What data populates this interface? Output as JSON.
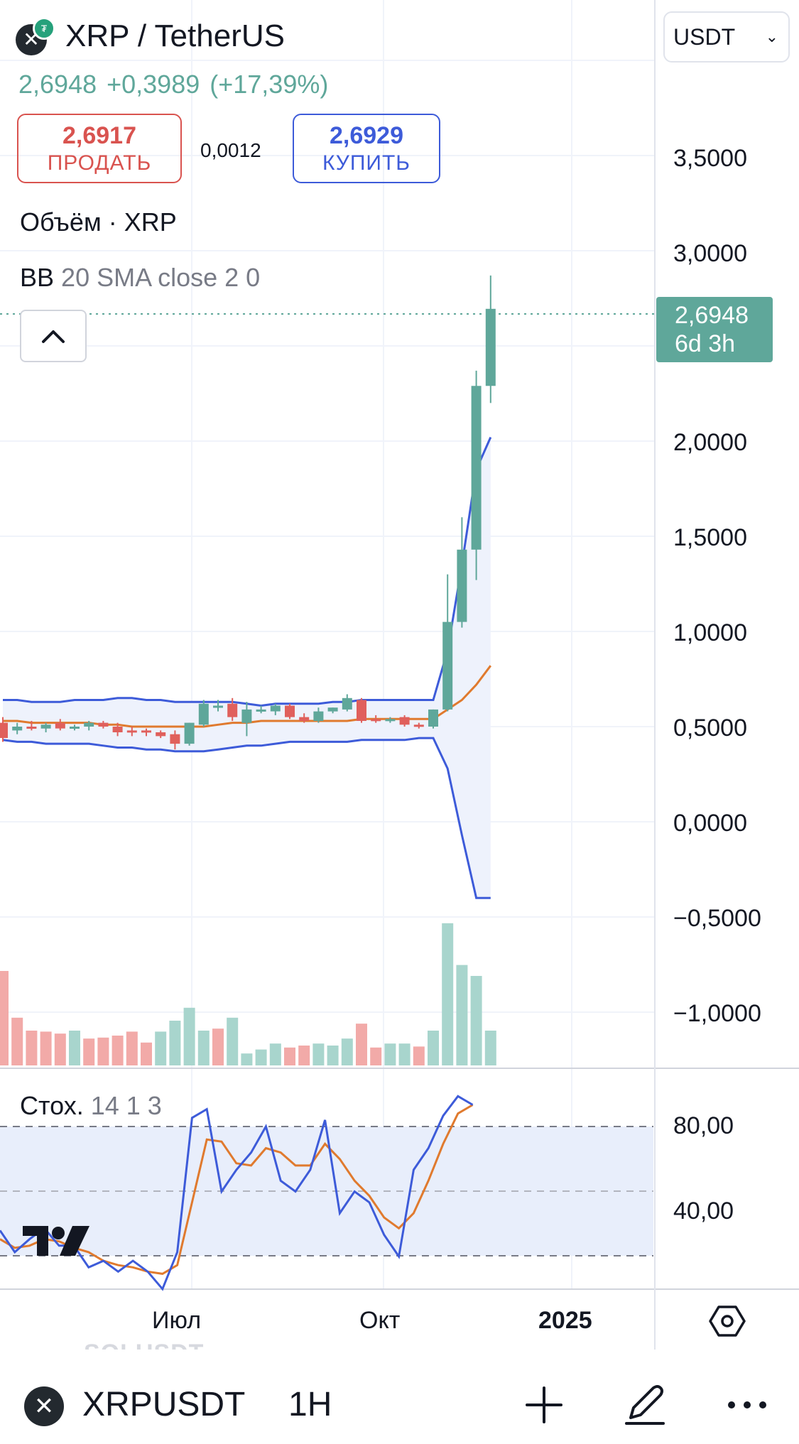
{
  "header": {
    "pair_title": "XRP / TetherUS",
    "last_price": "2,6948",
    "change_abs": "+0,3989",
    "change_pct": "(+17,39%)",
    "currency_selector": "USDT"
  },
  "trade": {
    "sell_price": "2,6917",
    "sell_label": "ПРОДАТЬ",
    "spread": "0,0012",
    "buy_price": "2,6929",
    "buy_label": "КУПИТЬ"
  },
  "legends": {
    "volume": "Объём · XRP",
    "bb_name": "BB",
    "bb_params": "20 SMA close 2 0",
    "stoch_name": "Стох.",
    "stoch_params": "14 1 3"
  },
  "price_label": {
    "value": "2,6948",
    "countdown": "6d 3h"
  },
  "price_axis": [
    "3,5000",
    "3,0000",
    "2,0000",
    "1,5000",
    "1,0000",
    "0,5000",
    "0,0000",
    "−0,5000",
    "−1,0000"
  ],
  "stoch_axis": [
    "80,00",
    "40,00"
  ],
  "time_axis": [
    "Июл",
    "Окт",
    "2025"
  ],
  "bottom_bar": {
    "ghost_ticker": "SOLUSDT",
    "symbol": "XRPUSDT",
    "interval": "1H"
  },
  "colors": {
    "up": "#5fa79a",
    "down": "#e0605c",
    "bb_band": "#3d5bd9",
    "bb_basis": "#e07a2e",
    "stoch_k": "#3d5bd9",
    "stoch_d": "#e07a2e",
    "sell": "#d9534f",
    "buy": "#3d5bd9"
  },
  "icons": {
    "pair_logo": "xrp-logo-icon",
    "currency_chevron": "chevron-down-icon",
    "collapse": "chevron-up-icon",
    "settings": "hexagon-settings-icon",
    "add": "plus-icon",
    "draw": "pen-icon",
    "more": "more-dots-icon"
  },
  "chart_data": {
    "type": "candlestick",
    "price_range": [
      -1.2,
      4.0
    ],
    "candles": [
      {
        "o": 0.52,
        "h": 0.55,
        "l": 0.42,
        "c": 0.44
      },
      {
        "o": 0.48,
        "h": 0.52,
        "l": 0.46,
        "c": 0.5
      },
      {
        "o": 0.5,
        "h": 0.53,
        "l": 0.48,
        "c": 0.49
      },
      {
        "o": 0.49,
        "h": 0.52,
        "l": 0.47,
        "c": 0.51
      },
      {
        "o": 0.52,
        "h": 0.54,
        "l": 0.48,
        "c": 0.49
      },
      {
        "o": 0.49,
        "h": 0.51,
        "l": 0.48,
        "c": 0.5
      },
      {
        "o": 0.5,
        "h": 0.53,
        "l": 0.48,
        "c": 0.52
      },
      {
        "o": 0.52,
        "h": 0.53,
        "l": 0.49,
        "c": 0.5
      },
      {
        "o": 0.5,
        "h": 0.52,
        "l": 0.45,
        "c": 0.47
      },
      {
        "o": 0.48,
        "h": 0.5,
        "l": 0.45,
        "c": 0.47
      },
      {
        "o": 0.48,
        "h": 0.49,
        "l": 0.45,
        "c": 0.47
      },
      {
        "o": 0.47,
        "h": 0.48,
        "l": 0.44,
        "c": 0.45
      },
      {
        "o": 0.46,
        "h": 0.48,
        "l": 0.38,
        "c": 0.41
      },
      {
        "o": 0.41,
        "h": 0.52,
        "l": 0.4,
        "c": 0.52
      },
      {
        "o": 0.51,
        "h": 0.64,
        "l": 0.5,
        "c": 0.62
      },
      {
        "o": 0.6,
        "h": 0.64,
        "l": 0.58,
        "c": 0.61
      },
      {
        "o": 0.62,
        "h": 0.65,
        "l": 0.53,
        "c": 0.55
      },
      {
        "o": 0.52,
        "h": 0.63,
        "l": 0.45,
        "c": 0.59
      },
      {
        "o": 0.58,
        "h": 0.61,
        "l": 0.57,
        "c": 0.59
      },
      {
        "o": 0.58,
        "h": 0.62,
        "l": 0.56,
        "c": 0.61
      },
      {
        "o": 0.61,
        "h": 0.62,
        "l": 0.54,
        "c": 0.55
      },
      {
        "o": 0.55,
        "h": 0.57,
        "l": 0.52,
        "c": 0.53
      },
      {
        "o": 0.53,
        "h": 0.6,
        "l": 0.52,
        "c": 0.58
      },
      {
        "o": 0.58,
        "h": 0.6,
        "l": 0.57,
        "c": 0.6
      },
      {
        "o": 0.59,
        "h": 0.67,
        "l": 0.58,
        "c": 0.65
      },
      {
        "o": 0.64,
        "h": 0.65,
        "l": 0.52,
        "c": 0.53
      },
      {
        "o": 0.54,
        "h": 0.56,
        "l": 0.52,
        "c": 0.53
      },
      {
        "o": 0.53,
        "h": 0.55,
        "l": 0.52,
        "c": 0.54
      },
      {
        "o": 0.55,
        "h": 0.56,
        "l": 0.5,
        "c": 0.51
      },
      {
        "o": 0.51,
        "h": 0.52,
        "l": 0.49,
        "c": 0.5
      },
      {
        "o": 0.5,
        "h": 0.59,
        "l": 0.49,
        "c": 0.59
      },
      {
        "o": 0.59,
        "h": 1.3,
        "l": 0.58,
        "c": 1.05
      },
      {
        "o": 1.05,
        "h": 1.6,
        "l": 1.02,
        "c": 1.43
      },
      {
        "o": 1.43,
        "h": 2.37,
        "l": 1.27,
        "c": 2.29
      },
      {
        "o": 2.29,
        "h": 2.87,
        "l": 2.2,
        "c": 2.6948
      }
    ],
    "volume": [
      95,
      48,
      35,
      34,
      32,
      35,
      27,
      28,
      30,
      34,
      23,
      34,
      45,
      58,
      35,
      37,
      48,
      12,
      16,
      22,
      18,
      20,
      22,
      20,
      27,
      42,
      18,
      22,
      22,
      19,
      35,
      143,
      101,
      90,
      35
    ],
    "volume_up": [
      false,
      false,
      false,
      false,
      false,
      true,
      false,
      false,
      false,
      false,
      false,
      true,
      true,
      true,
      true,
      false,
      true,
      true,
      true,
      true,
      false,
      false,
      true,
      true,
      true,
      false,
      false,
      true,
      true,
      false,
      true,
      true,
      true,
      true,
      true
    ],
    "bb_upper": [
      0.64,
      0.64,
      0.63,
      0.63,
      0.63,
      0.64,
      0.64,
      0.64,
      0.65,
      0.65,
      0.64,
      0.64,
      0.63,
      0.63,
      0.63,
      0.63,
      0.63,
      0.62,
      0.61,
      0.62,
      0.62,
      0.62,
      0.62,
      0.63,
      0.63,
      0.64,
      0.64,
      0.64,
      0.64,
      0.64,
      0.64,
      0.9,
      1.35,
      1.85,
      2.02
    ],
    "bb_basis": [
      0.53,
      0.53,
      0.52,
      0.52,
      0.52,
      0.52,
      0.52,
      0.51,
      0.51,
      0.5,
      0.5,
      0.5,
      0.5,
      0.5,
      0.5,
      0.51,
      0.52,
      0.52,
      0.53,
      0.53,
      0.53,
      0.53,
      0.53,
      0.53,
      0.53,
      0.54,
      0.54,
      0.54,
      0.54,
      0.54,
      0.54,
      0.59,
      0.64,
      0.72,
      0.82
    ],
    "bb_lower": [
      0.43,
      0.42,
      0.42,
      0.41,
      0.41,
      0.41,
      0.41,
      0.4,
      0.39,
      0.39,
      0.38,
      0.38,
      0.37,
      0.37,
      0.37,
      0.38,
      0.39,
      0.4,
      0.4,
      0.41,
      0.42,
      0.42,
      0.42,
      0.42,
      0.42,
      0.43,
      0.43,
      0.43,
      0.43,
      0.44,
      0.44,
      0.28,
      -0.07,
      -0.4,
      -0.4
    ],
    "stoch_range": [
      10,
      100
    ],
    "stoch_k": [
      32,
      22,
      28,
      33,
      25,
      25,
      15,
      18,
      13,
      18,
      13,
      5,
      22,
      84,
      88,
      50,
      60,
      68,
      80,
      55,
      50,
      60,
      83,
      40,
      50,
      45,
      30,
      20,
      60,
      70,
      85,
      94,
      90
    ],
    "stoch_d": [
      28,
      24,
      25,
      28,
      27,
      24,
      22,
      18,
      16,
      15,
      13,
      12,
      16,
      45,
      74,
      73,
      63,
      62,
      70,
      68,
      62,
      62,
      72,
      65,
      55,
      48,
      38,
      33,
      40,
      55,
      72,
      86,
      90
    ],
    "stoch_bands": {
      "upper": 80,
      "middle": 50,
      "lower": 20
    }
  }
}
